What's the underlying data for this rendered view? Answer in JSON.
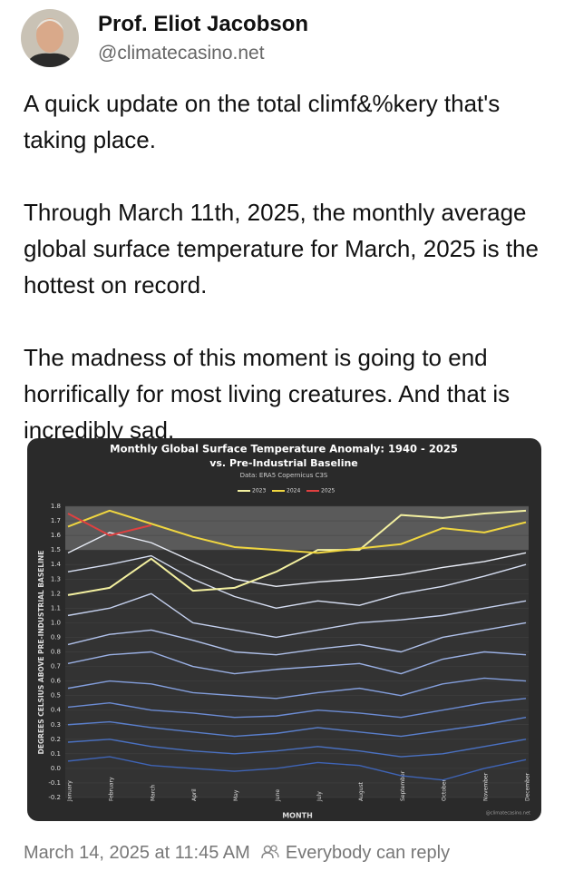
{
  "post": {
    "author": "Prof. Eliot Jacobson",
    "handle": "@climatecasino.net",
    "paragraphs": [
      "A quick update on the total climf&%kery that's taking place.",
      "Through March 11th, 2025, the monthly average global surface temperature for March, 2025 is the hottest on record.",
      "The madness of this moment is going to end horrifically for most living creatures. And that is incredibly sad."
    ],
    "timestamp": "March 14, 2025 at 11:45 AM",
    "reply_setting": "Everybody can reply"
  },
  "chart_data": {
    "type": "line",
    "title": "Monthly Global Surface Temperature Anomaly: 1940 - 2025",
    "subtitle": "vs. Pre-Industrial Baseline",
    "source": "Data: ERA5 Copernicus C3S",
    "y_label": "DEGREES CELSIUS ABOVE PRE-INDUSTRIAL BASELINE",
    "x_label": "MONTH",
    "watermark": "@climatecasino.net",
    "categories": [
      "January",
      "February",
      "March",
      "April",
      "May",
      "June",
      "July",
      "August",
      "September",
      "October",
      "November",
      "December"
    ],
    "ylim": [
      -0.2,
      1.8
    ],
    "yticks": [
      -0.2,
      -0.1,
      {
        "value": 0,
        "label": "0.0"
      },
      0.1,
      0.2,
      0.3,
      0.4,
      0.5,
      0.6,
      0.7,
      0.8,
      0.9,
      {
        "value": 1,
        "label": "1.0"
      },
      1.1,
      1.2,
      1.3,
      1.4,
      1.5,
      1.6,
      1.7,
      1.8
    ],
    "grid": true,
    "highlight_band": [
      1.5,
      1.8
    ],
    "series": [
      {
        "color": "#e8ecf6",
        "values": [
          1.48,
          1.62,
          1.55,
          1.42,
          1.3,
          1.25,
          1.28,
          1.3,
          1.33,
          1.38,
          1.42,
          1.48
        ]
      },
      {
        "color": "#d6def2",
        "values": [
          1.35,
          1.4,
          1.46,
          1.3,
          1.18,
          1.1,
          1.15,
          1.12,
          1.2,
          1.25,
          1.32,
          1.4
        ]
      },
      {
        "color": "#c4d0ee",
        "values": [
          1.05,
          1.1,
          1.2,
          1.0,
          0.95,
          0.9,
          0.95,
          1.0,
          1.02,
          1.05,
          1.1,
          1.15
        ]
      },
      {
        "color": "#b0c1ea",
        "values": [
          0.85,
          0.92,
          0.95,
          0.88,
          0.8,
          0.78,
          0.82,
          0.85,
          0.8,
          0.9,
          0.95,
          1.0
        ]
      },
      {
        "color": "#9ab0e4",
        "values": [
          0.72,
          0.78,
          0.8,
          0.7,
          0.65,
          0.68,
          0.7,
          0.72,
          0.65,
          0.75,
          0.8,
          0.78
        ]
      },
      {
        "color": "#839edc",
        "values": [
          0.55,
          0.6,
          0.58,
          0.52,
          0.5,
          0.48,
          0.52,
          0.55,
          0.5,
          0.58,
          0.62,
          0.6
        ]
      },
      {
        "color": "#6c8cd4",
        "values": [
          0.42,
          0.45,
          0.4,
          0.38,
          0.35,
          0.36,
          0.4,
          0.38,
          0.35,
          0.4,
          0.45,
          0.48
        ]
      },
      {
        "color": "#5a7fcc",
        "values": [
          0.3,
          0.32,
          0.28,
          0.25,
          0.22,
          0.24,
          0.28,
          0.25,
          0.22,
          0.26,
          0.3,
          0.35
        ]
      },
      {
        "color": "#4a71c2",
        "values": [
          0.18,
          0.2,
          0.15,
          0.12,
          0.1,
          0.12,
          0.15,
          0.12,
          0.08,
          0.1,
          0.15,
          0.2
        ]
      },
      {
        "color": "#3f64b6",
        "values": [
          0.05,
          0.08,
          0.02,
          0.0,
          -0.02,
          0.0,
          0.04,
          0.02,
          -0.05,
          -0.08,
          0.0,
          0.06
        ]
      },
      {
        "name": "2023",
        "color": "#f3f0a0",
        "values": [
          1.19,
          1.24,
          1.44,
          1.22,
          1.24,
          1.35,
          1.5,
          1.5,
          1.74,
          1.72,
          1.75,
          1.77
        ]
      },
      {
        "name": "2024",
        "color": "#f0d640",
        "values": [
          1.66,
          1.77,
          1.68,
          1.59,
          1.52,
          1.5,
          1.48,
          1.51,
          1.54,
          1.65,
          1.62,
          1.69
        ]
      },
      {
        "name": "2025",
        "color": "#e04040",
        "values": [
          1.75,
          1.6,
          1.67,
          null,
          null,
          null,
          null,
          null,
          null,
          null,
          null,
          null
        ]
      }
    ]
  }
}
